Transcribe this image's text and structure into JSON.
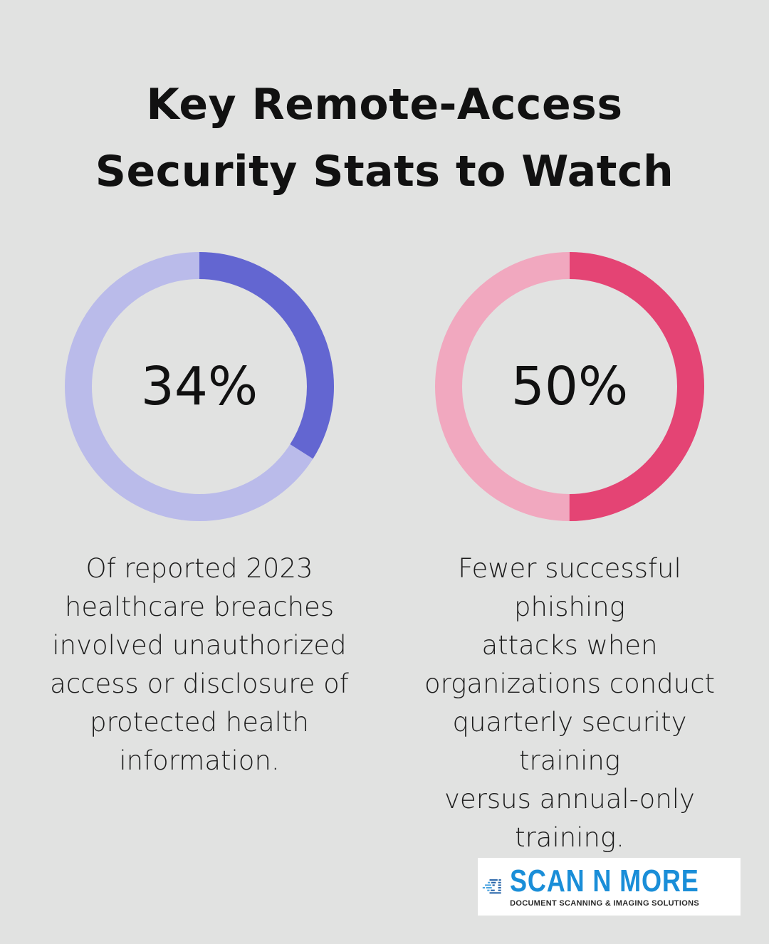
{
  "title": {
    "line1": "Key Remote-Access",
    "line2": "Security Stats to Watch"
  },
  "chart_data": [
    {
      "type": "pie",
      "variant": "donut",
      "value": 34,
      "label": "34%",
      "caption": "Of reported 2023 healthcare breaches involved unauthorized access or disclosure of protected health information.",
      "caption_lines": [
        "Of reported 2023",
        "healthcare breaches",
        "involved unauthorized",
        "access or disclosure of",
        "protected health",
        "information."
      ],
      "colors": {
        "filled": "#6366d1",
        "track": "#babbea"
      }
    },
    {
      "type": "pie",
      "variant": "donut",
      "value": 50,
      "label": "50%",
      "caption": "Fewer successful phishing attacks when organizations conduct quarterly security training versus annual-only training.",
      "caption_lines": [
        "Fewer successful phishing",
        "attacks when",
        "organizations conduct",
        "quarterly security training",
        "versus annual-only",
        "training."
      ],
      "colors": {
        "filled": "#e44474",
        "track": "#f1a8bf"
      }
    }
  ],
  "logo": {
    "name": "SCAN N MORE",
    "tagline": "DOCUMENT SCANNING & IMAGING SOLUTIONS",
    "icon": "scanner-icon",
    "colors": {
      "name": "#1a8ed8",
      "icon_dark": "#2563a8",
      "icon_light": "#4aa3e0"
    }
  }
}
